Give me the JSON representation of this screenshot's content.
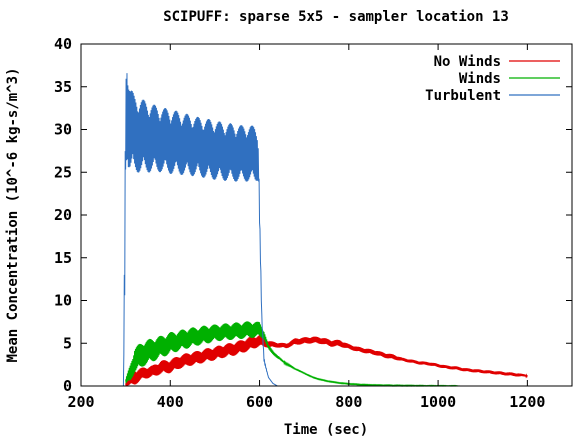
{
  "chart_data": {
    "type": "line",
    "title": "SCIPUFF: sparse 5x5 - sampler location 13",
    "xlabel": "Time (sec)",
    "ylabel": "Mean Concentration (10^-6 kg-s/m^3)",
    "xlim": [
      200,
      1300
    ],
    "ylim": [
      0,
      40
    ],
    "xticks": [
      200,
      400,
      600,
      800,
      1000,
      1200
    ],
    "yticks": [
      0,
      5,
      10,
      15,
      20,
      25,
      30,
      35,
      40
    ],
    "grid": false,
    "legend_position": "top-right",
    "series": [
      {
        "name": "No Winds",
        "color": "#e00000",
        "x": [
          300,
          320,
          340,
          360,
          380,
          400,
          420,
          440,
          460,
          480,
          500,
          520,
          540,
          560,
          580,
          600,
          620,
          640,
          660,
          680,
          700,
          720,
          740,
          760,
          780,
          800,
          820,
          840,
          860,
          880,
          900,
          920,
          940,
          960,
          980,
          1000,
          1020,
          1040,
          1060,
          1080,
          1100,
          1120,
          1140,
          1160,
          1180,
          1200
        ],
        "y": [
          0.2,
          1.0,
          1.5,
          1.7,
          2.2,
          2.3,
          2.8,
          3.1,
          3.3,
          3.6,
          3.8,
          4.1,
          4.3,
          4.6,
          5.0,
          5.3,
          4.9,
          4.8,
          4.7,
          5.2,
          5.3,
          5.4,
          5.3,
          5.0,
          5.0,
          4.6,
          4.3,
          4.1,
          3.9,
          3.6,
          3.4,
          3.1,
          2.9,
          2.7,
          2.6,
          2.4,
          2.2,
          2.1,
          1.9,
          1.8,
          1.7,
          1.6,
          1.5,
          1.4,
          1.3,
          1.2
        ],
        "noise": [
          0.2,
          0.9,
          0.7,
          0.7,
          0.8,
          0.8,
          0.8,
          0.8,
          0.8,
          0.8,
          0.8,
          0.8,
          0.8,
          0.8,
          0.8,
          0.7,
          0.4,
          0.3,
          0.3,
          0.4,
          0.4,
          0.4,
          0.4,
          0.4,
          0.4,
          0.3,
          0.3,
          0.3,
          0.3,
          0.3,
          0.3,
          0.2,
          0.2,
          0.2,
          0.2,
          0.2,
          0.2,
          0.2,
          0.2,
          0.2,
          0.2,
          0.2,
          0.2,
          0.2,
          0.2,
          0.1
        ]
      },
      {
        "name": "Winds",
        "color": "#00b000",
        "x": [
          300,
          310,
          320,
          340,
          360,
          380,
          400,
          420,
          440,
          460,
          480,
          500,
          520,
          540,
          560,
          580,
          600,
          610,
          620,
          640,
          660,
          680,
          700,
          720,
          740,
          760,
          780,
          800,
          820,
          840,
          860,
          880,
          900,
          920,
          940,
          960,
          980,
          1000,
          1020,
          1040,
          1050
        ],
        "y": [
          0.5,
          1.5,
          3.0,
          3.8,
          4.2,
          4.6,
          5.0,
          5.3,
          5.6,
          5.8,
          6.0,
          6.2,
          6.3,
          6.4,
          6.5,
          6.6,
          6.6,
          6.0,
          4.5,
          3.4,
          2.6,
          2.0,
          1.5,
          1.0,
          0.7,
          0.5,
          0.35,
          0.25,
          0.18,
          0.13,
          0.1,
          0.08,
          0.06,
          0.05,
          0.04,
          0.03,
          0.02,
          0.02,
          0.01,
          0.01,
          0.0
        ],
        "noise": [
          0.3,
          1.0,
          1.5,
          1.5,
          1.4,
          1.3,
          1.3,
          1.2,
          1.2,
          1.1,
          1.1,
          1.0,
          1.0,
          1.0,
          1.0,
          1.0,
          0.9,
          0.5,
          0.3,
          0.2,
          0.1,
          0.05,
          0.05,
          0.05,
          0.05,
          0.05,
          0.05,
          0.05,
          0.05,
          0.05,
          0.05,
          0.05,
          0.05,
          0.05,
          0.05,
          0.05,
          0.05,
          0.05,
          0.05,
          0.05,
          0.0
        ]
      },
      {
        "name": "Turbulent",
        "color": "#3070c0",
        "x": [
          295,
          298,
          300,
          303,
          306,
          310,
          320,
          340,
          360,
          380,
          400,
          420,
          440,
          460,
          480,
          500,
          520,
          540,
          560,
          580,
          590,
          595,
          598,
          600,
          605,
          610,
          620,
          630,
          640
        ],
        "y": [
          0.0,
          15.0,
          31.0,
          33.0,
          31.0,
          30.0,
          29.5,
          29.2,
          29.0,
          28.8,
          28.6,
          28.4,
          28.2,
          28.0,
          27.8,
          27.6,
          27.4,
          27.3,
          27.2,
          27.2,
          27.1,
          27.0,
          26.0,
          20.0,
          8.0,
          3.0,
          1.0,
          0.3,
          0.0
        ],
        "noise": [
          0.0,
          5.0,
          6.0,
          6.0,
          5.5,
          5.0,
          4.5,
          4.3,
          4.0,
          3.8,
          3.8,
          3.7,
          3.6,
          3.5,
          3.5,
          3.5,
          3.4,
          3.4,
          3.3,
          3.3,
          3.3,
          3.0,
          2.0,
          1.0,
          0.5,
          0.2,
          0.0,
          0.0,
          0.0
        ]
      }
    ]
  }
}
